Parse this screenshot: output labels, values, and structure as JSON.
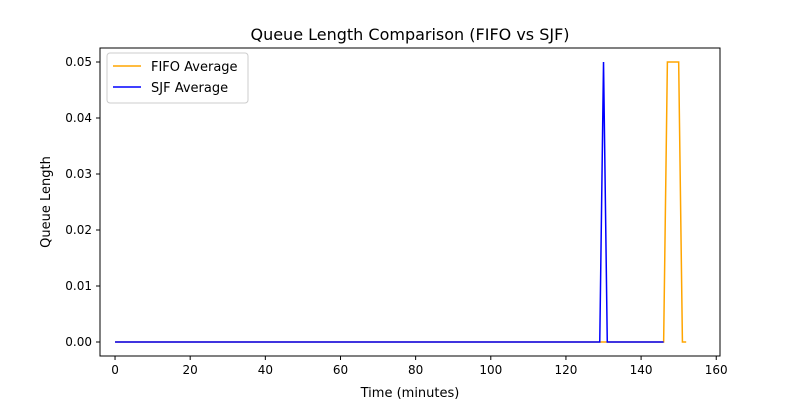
{
  "chart_data": {
    "type": "line",
    "title": "Queue Length Comparison (FIFO vs SJF)",
    "xlabel": "Time (minutes)",
    "ylabel": "Queue Length",
    "xlim": [
      -4,
      161
    ],
    "ylim": [
      -0.0025,
      0.0525
    ],
    "xticks": [
      0,
      20,
      40,
      60,
      80,
      100,
      120,
      140,
      160
    ],
    "yticks": [
      0.0,
      0.01,
      0.02,
      0.03,
      0.04,
      0.05
    ],
    "xtick_labels": [
      "0",
      "20",
      "40",
      "60",
      "80",
      "100",
      "120",
      "140",
      "160"
    ],
    "ytick_labels": [
      "0.00",
      "0.01",
      "0.02",
      "0.03",
      "0.04",
      "0.05"
    ],
    "grid": false,
    "legend_position": "top-left",
    "series": [
      {
        "name": "FIFO Average",
        "color": "#ffa500",
        "x": [
          0,
          146,
          147,
          150,
          151,
          152
        ],
        "y": [
          0,
          0,
          0.05,
          0.05,
          0,
          0
        ]
      },
      {
        "name": "SJF Average",
        "color": "#0000ff",
        "x": [
          0,
          129,
          130,
          131,
          146
        ],
        "y": [
          0,
          0,
          0.05,
          0,
          0
        ]
      }
    ]
  }
}
